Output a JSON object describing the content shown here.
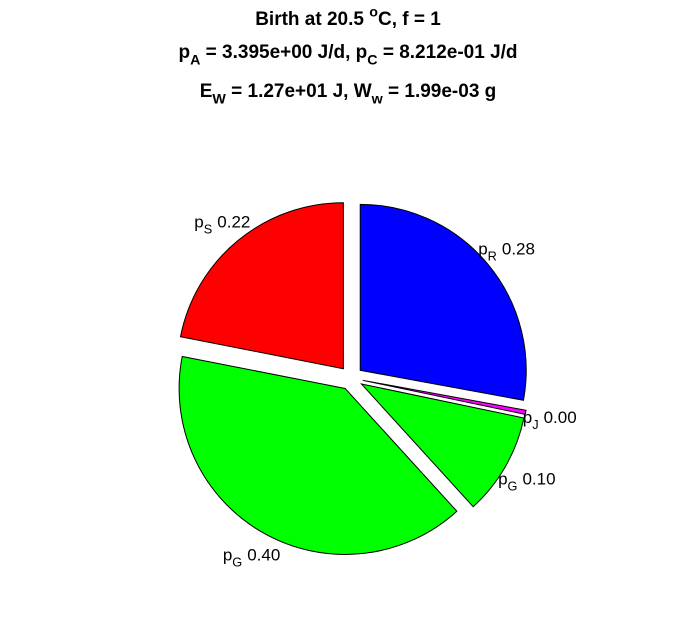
{
  "chart_data": {
    "type": "pie",
    "title": [
      [
        "Birth at 20.5 ",
        {
          "sup": "o"
        },
        "C, f = 1"
      ],
      [
        "p",
        {
          "sub": "A"
        },
        " = 3.395e+00 J/d, p",
        {
          "sub": "C"
        },
        " = 8.212e-01 J/d"
      ],
      [
        "E",
        {
          "sub": "W"
        },
        " = 1.27e+01 J, W",
        {
          "sub": "w"
        },
        " = 1.99e-03 g"
      ]
    ],
    "categories": [
      [
        "p",
        {
          "sub": "R"
        }
      ],
      [
        "p",
        {
          "sub": "J"
        }
      ],
      [
        "p",
        {
          "sub": "G"
        }
      ],
      [
        "p",
        {
          "sub": "G"
        }
      ],
      [
        "p",
        {
          "sub": "S"
        }
      ]
    ],
    "values": [
      0.28,
      0.004,
      0.1,
      0.4,
      0.22
    ],
    "value_labels": [
      "0.28",
      "0.00",
      "0.10",
      "0.40",
      "0.22"
    ],
    "colors": [
      "#0000ff",
      "#ff00ff",
      "#00ff00",
      "#00ff00",
      "#ff0000"
    ],
    "exploded": true
  }
}
